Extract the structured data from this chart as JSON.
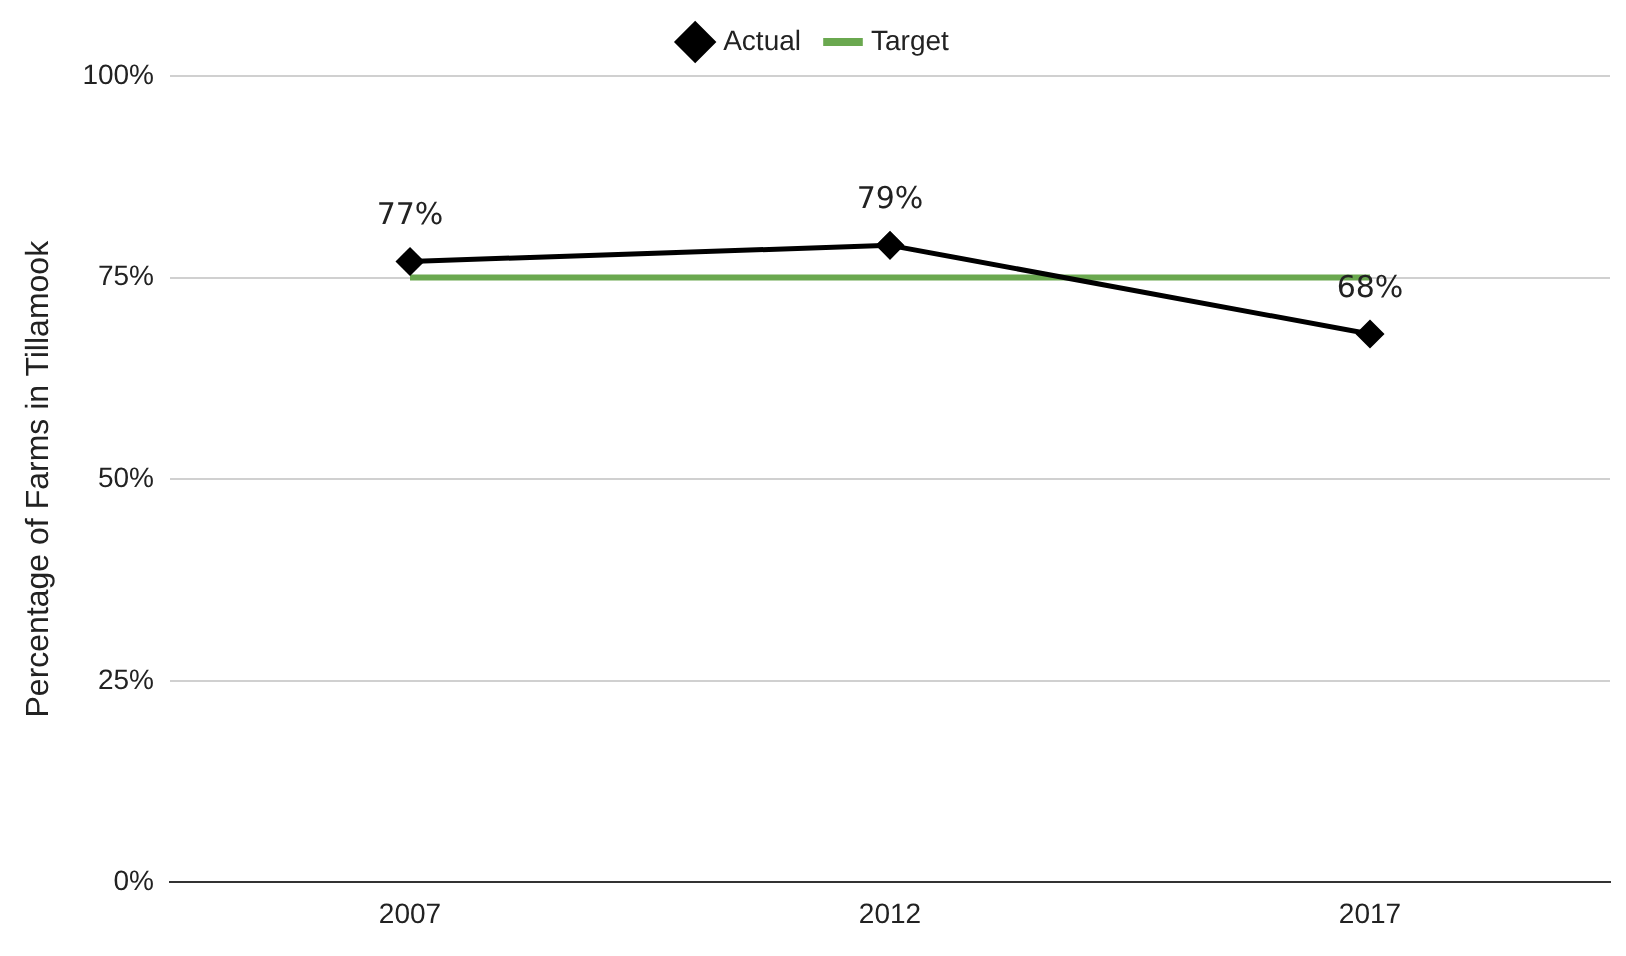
{
  "chart_data": {
    "type": "line",
    "ylabel": "Percentage of Farms in Tillamook",
    "categories": [
      "2007",
      "2012",
      "2017"
    ],
    "series": [
      {
        "name": "Actual",
        "color": "#000000",
        "values": [
          77,
          79,
          68
        ],
        "marker": "diamond",
        "value_labels": [
          "77%",
          "79%",
          "68%"
        ]
      },
      {
        "name": "Target",
        "color": "#6aa84f",
        "values": [
          75,
          75,
          75
        ],
        "marker": "none"
      }
    ],
    "ylim": [
      0,
      100
    ],
    "yticks": [
      {
        "value": 0,
        "label": "0%"
      },
      {
        "value": 25,
        "label": "25%"
      },
      {
        "value": 50,
        "label": "50%"
      },
      {
        "value": 75,
        "label": "75%"
      },
      {
        "value": 100,
        "label": "100%"
      }
    ],
    "grid": "y",
    "legend": "top"
  }
}
